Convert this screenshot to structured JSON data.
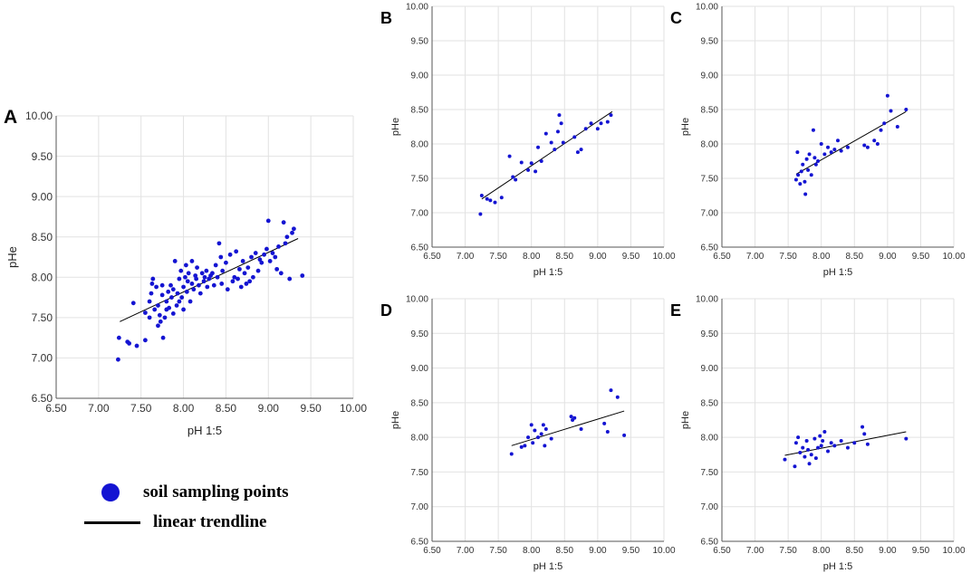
{
  "legend": {
    "points_label": "soil sampling points",
    "trendline_label": "linear trendline",
    "point_color": "#1414d2",
    "line_color": "#000000"
  },
  "chart_data": [
    {
      "panel": "A",
      "type": "scatter",
      "xlabel": "pH 1:5",
      "ylabel": "pHe",
      "xlim": [
        6.5,
        10.0
      ],
      "ylim": [
        6.5,
        10.0
      ],
      "xticks": [
        "6.50",
        "7.00",
        "7.50",
        "8.00",
        "8.50",
        "9.00",
        "9.50",
        "10.00"
      ],
      "yticks": [
        "6.50",
        "7.00",
        "7.50",
        "8.00",
        "8.50",
        "9.00",
        "9.50",
        "10.00"
      ],
      "grid": true,
      "trendline": [
        [
          7.25,
          7.45
        ],
        [
          9.35,
          8.48
        ]
      ],
      "points": [
        [
          7.23,
          6.98
        ],
        [
          7.24,
          7.25
        ],
        [
          7.34,
          7.2
        ],
        [
          7.36,
          7.18
        ],
        [
          7.41,
          7.68
        ],
        [
          7.45,
          7.15
        ],
        [
          7.55,
          7.56
        ],
        [
          7.55,
          7.22
        ],
        [
          7.6,
          7.5
        ],
        [
          7.6,
          7.7
        ],
        [
          7.62,
          7.8
        ],
        [
          7.63,
          7.92
        ],
        [
          7.64,
          7.98
        ],
        [
          7.66,
          7.6
        ],
        [
          7.68,
          7.88
        ],
        [
          7.7,
          7.4
        ],
        [
          7.7,
          7.65
        ],
        [
          7.72,
          7.53
        ],
        [
          7.73,
          7.45
        ],
        [
          7.75,
          7.78
        ],
        [
          7.75,
          7.9
        ],
        [
          7.76,
          7.25
        ],
        [
          7.78,
          7.5
        ],
        [
          7.8,
          7.6
        ],
        [
          7.8,
          7.7
        ],
        [
          7.82,
          7.82
        ],
        [
          7.83,
          7.62
        ],
        [
          7.85,
          7.9
        ],
        [
          7.86,
          7.75
        ],
        [
          7.88,
          7.55
        ],
        [
          7.88,
          7.85
        ],
        [
          7.9,
          8.2
        ],
        [
          7.92,
          7.65
        ],
        [
          7.93,
          7.8
        ],
        [
          7.95,
          7.7
        ],
        [
          7.95,
          7.98
        ],
        [
          7.97,
          8.08
        ],
        [
          7.98,
          7.75
        ],
        [
          8.0,
          7.88
        ],
        [
          8.0,
          7.6
        ],
        [
          8.02,
          8.0
        ],
        [
          8.03,
          8.15
        ],
        [
          8.04,
          7.82
        ],
        [
          8.05,
          7.95
        ],
        [
          8.06,
          8.05
        ],
        [
          8.08,
          7.7
        ],
        [
          8.1,
          7.92
        ],
        [
          8.1,
          8.2
        ],
        [
          8.12,
          7.85
        ],
        [
          8.14,
          8.02
        ],
        [
          8.15,
          7.98
        ],
        [
          8.16,
          8.12
        ],
        [
          8.18,
          7.9
        ],
        [
          8.2,
          7.8
        ],
        [
          8.22,
          8.05
        ],
        [
          8.24,
          7.95
        ],
        [
          8.25,
          8.0
        ],
        [
          8.27,
          8.08
        ],
        [
          8.28,
          7.88
        ],
        [
          8.3,
          7.98
        ],
        [
          8.32,
          8.02
        ],
        [
          8.34,
          8.05
        ],
        [
          8.36,
          7.9
        ],
        [
          8.38,
          8.15
        ],
        [
          8.4,
          8.0
        ],
        [
          8.42,
          8.42
        ],
        [
          8.44,
          8.25
        ],
        [
          8.45,
          7.92
        ],
        [
          8.46,
          8.08
        ],
        [
          8.5,
          8.18
        ],
        [
          8.52,
          7.85
        ],
        [
          8.55,
          8.28
        ],
        [
          8.58,
          7.95
        ],
        [
          8.6,
          8.0
        ],
        [
          8.62,
          8.32
        ],
        [
          8.64,
          7.98
        ],
        [
          8.66,
          8.1
        ],
        [
          8.68,
          7.88
        ],
        [
          8.7,
          8.2
        ],
        [
          8.72,
          8.05
        ],
        [
          8.74,
          7.92
        ],
        [
          8.76,
          8.12
        ],
        [
          8.78,
          7.95
        ],
        [
          8.8,
          8.25
        ],
        [
          8.82,
          8.0
        ],
        [
          8.85,
          8.3
        ],
        [
          8.88,
          8.08
        ],
        [
          8.9,
          8.22
        ],
        [
          8.92,
          8.18
        ],
        [
          8.95,
          8.28
        ],
        [
          8.98,
          8.35
        ],
        [
          9.0,
          8.7
        ],
        [
          9.02,
          8.2
        ],
        [
          9.05,
          8.3
        ],
        [
          9.08,
          8.25
        ],
        [
          9.1,
          8.1
        ],
        [
          9.12,
          8.38
        ],
        [
          9.15,
          8.05
        ],
        [
          9.18,
          8.68
        ],
        [
          9.2,
          8.42
        ],
        [
          9.22,
          8.5
        ],
        [
          9.25,
          7.98
        ],
        [
          9.28,
          8.55
        ],
        [
          9.3,
          8.6
        ],
        [
          9.4,
          8.02
        ]
      ]
    },
    {
      "panel": "B",
      "type": "scatter",
      "xlabel": "pH 1:5",
      "ylabel": "pHe",
      "xlim": [
        6.5,
        10.0
      ],
      "ylim": [
        6.5,
        10.0
      ],
      "xticks": [
        "6.50",
        "7.00",
        "7.50",
        "8.00",
        "8.50",
        "9.00",
        "9.50",
        "10.00"
      ],
      "yticks": [
        "6.50",
        "7.00",
        "7.50",
        "8.00",
        "8.50",
        "9.00",
        "9.50",
        "10.00"
      ],
      "grid": true,
      "trendline": [
        [
          7.25,
          7.2
        ],
        [
          9.22,
          8.47
        ]
      ],
      "points": [
        [
          7.23,
          6.98
        ],
        [
          7.25,
          7.25
        ],
        [
          7.33,
          7.2
        ],
        [
          7.38,
          7.18
        ],
        [
          7.45,
          7.15
        ],
        [
          7.55,
          7.22
        ],
        [
          7.67,
          7.82
        ],
        [
          7.72,
          7.52
        ],
        [
          7.76,
          7.48
        ],
        [
          7.85,
          7.73
        ],
        [
          7.95,
          7.62
        ],
        [
          8.0,
          7.72
        ],
        [
          8.06,
          7.6
        ],
        [
          8.1,
          7.95
        ],
        [
          8.15,
          7.75
        ],
        [
          8.22,
          8.15
        ],
        [
          8.3,
          8.02
        ],
        [
          8.35,
          7.92
        ],
        [
          8.4,
          8.18
        ],
        [
          8.42,
          8.42
        ],
        [
          8.45,
          8.3
        ],
        [
          8.48,
          8.02
        ],
        [
          8.65,
          8.1
        ],
        [
          8.7,
          7.88
        ],
        [
          8.75,
          7.92
        ],
        [
          8.82,
          8.22
        ],
        [
          8.9,
          8.3
        ],
        [
          9.0,
          8.22
        ],
        [
          9.05,
          8.3
        ],
        [
          9.15,
          8.32
        ],
        [
          9.2,
          8.42
        ]
      ]
    },
    {
      "panel": "C",
      "type": "scatter",
      "xlabel": "pH 1:5",
      "ylabel": "pHe",
      "xlim": [
        6.5,
        10.0
      ],
      "ylim": [
        6.5,
        10.0
      ],
      "xticks": [
        "6.50",
        "7.00",
        "7.50",
        "8.00",
        "8.50",
        "9.00",
        "9.50",
        "10.00"
      ],
      "yticks": [
        "6.50",
        "7.00",
        "7.50",
        "8.00",
        "8.50",
        "9.00",
        "9.50",
        "10.00"
      ],
      "grid": true,
      "trendline": [
        [
          7.62,
          7.56
        ],
        [
          9.28,
          8.47
        ]
      ],
      "points": [
        [
          7.62,
          7.48
        ],
        [
          7.64,
          7.88
        ],
        [
          7.65,
          7.55
        ],
        [
          7.68,
          7.42
        ],
        [
          7.7,
          7.6
        ],
        [
          7.72,
          7.7
        ],
        [
          7.75,
          7.45
        ],
        [
          7.76,
          7.27
        ],
        [
          7.78,
          7.78
        ],
        [
          7.8,
          7.62
        ],
        [
          7.82,
          7.85
        ],
        [
          7.85,
          7.55
        ],
        [
          7.88,
          8.2
        ],
        [
          7.9,
          7.8
        ],
        [
          7.92,
          7.7
        ],
        [
          7.95,
          7.75
        ],
        [
          8.0,
          8.0
        ],
        [
          8.05,
          7.85
        ],
        [
          8.1,
          7.95
        ],
        [
          8.15,
          7.88
        ],
        [
          8.2,
          7.92
        ],
        [
          8.25,
          8.05
        ],
        [
          8.3,
          7.9
        ],
        [
          8.4,
          7.95
        ],
        [
          8.65,
          7.98
        ],
        [
          8.7,
          7.95
        ],
        [
          8.8,
          8.05
        ],
        [
          8.85,
          8.0
        ],
        [
          8.9,
          8.2
        ],
        [
          8.95,
          8.3
        ],
        [
          9.0,
          8.7
        ],
        [
          9.05,
          8.48
        ],
        [
          9.15,
          8.25
        ],
        [
          9.28,
          8.5
        ]
      ]
    },
    {
      "panel": "D",
      "type": "scatter",
      "xlabel": "pH 1:5",
      "ylabel": "pHe",
      "xlim": [
        6.5,
        10.0
      ],
      "ylim": [
        6.5,
        10.0
      ],
      "xticks": [
        "6.50",
        "7.00",
        "7.50",
        "8.00",
        "8.50",
        "9.00",
        "9.50",
        "10.00"
      ],
      "yticks": [
        "6.50",
        "7.00",
        "7.50",
        "8.00",
        "8.50",
        "9.00",
        "9.50",
        "10.00"
      ],
      "grid": true,
      "trendline": [
        [
          7.7,
          7.88
        ],
        [
          9.4,
          8.38
        ]
      ],
      "points": [
        [
          7.7,
          7.76
        ],
        [
          7.85,
          7.86
        ],
        [
          7.9,
          7.88
        ],
        [
          7.95,
          8.0
        ],
        [
          8.0,
          8.18
        ],
        [
          8.02,
          7.92
        ],
        [
          8.05,
          8.1
        ],
        [
          8.1,
          8.0
        ],
        [
          8.15,
          8.05
        ],
        [
          8.18,
          8.18
        ],
        [
          8.2,
          7.88
        ],
        [
          8.22,
          8.12
        ],
        [
          8.3,
          7.98
        ],
        [
          8.6,
          8.3
        ],
        [
          8.62,
          8.25
        ],
        [
          8.65,
          8.28
        ],
        [
          8.75,
          8.12
        ],
        [
          9.1,
          8.2
        ],
        [
          9.15,
          8.08
        ],
        [
          9.2,
          8.68
        ],
        [
          9.3,
          8.58
        ],
        [
          9.4,
          8.03
        ]
      ]
    },
    {
      "panel": "E",
      "type": "scatter",
      "xlabel": "pH 1:5",
      "ylabel": "pHe",
      "xlim": [
        6.5,
        10.0
      ],
      "ylim": [
        6.5,
        10.0
      ],
      "xticks": [
        "6.50",
        "7.00",
        "7.50",
        "8.00",
        "8.50",
        "9.00",
        "9.50",
        "10.00"
      ],
      "yticks": [
        "6.50",
        "7.00",
        "7.50",
        "8.00",
        "8.50",
        "9.00",
        "9.50",
        "10.00"
      ],
      "grid": true,
      "trendline": [
        [
          7.45,
          7.74
        ],
        [
          9.28,
          8.08
        ]
      ],
      "points": [
        [
          7.45,
          7.68
        ],
        [
          7.6,
          7.58
        ],
        [
          7.62,
          7.92
        ],
        [
          7.65,
          8.0
        ],
        [
          7.68,
          7.78
        ],
        [
          7.72,
          7.85
        ],
        [
          7.75,
          7.72
        ],
        [
          7.78,
          7.95
        ],
        [
          7.8,
          7.82
        ],
        [
          7.82,
          7.62
        ],
        [
          7.85,
          7.75
        ],
        [
          7.9,
          7.98
        ],
        [
          7.92,
          7.7
        ],
        [
          7.95,
          7.85
        ],
        [
          7.98,
          8.02
        ],
        [
          8.0,
          7.88
        ],
        [
          8.02,
          7.95
        ],
        [
          8.05,
          8.08
        ],
        [
          8.1,
          7.8
        ],
        [
          8.15,
          7.92
        ],
        [
          8.2,
          7.88
        ],
        [
          8.3,
          7.95
        ],
        [
          8.4,
          7.85
        ],
        [
          8.5,
          7.92
        ],
        [
          8.62,
          8.15
        ],
        [
          8.65,
          8.05
        ],
        [
          8.7,
          7.9
        ],
        [
          9.28,
          7.98
        ]
      ]
    }
  ]
}
